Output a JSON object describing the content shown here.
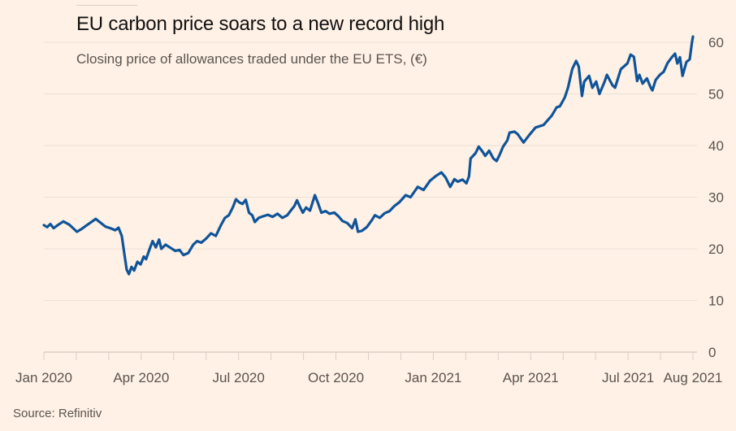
{
  "header": {
    "title": "EU carbon price soars to a new record high",
    "subtitle": "Closing price of allowances traded under the EU ETS, (€)"
  },
  "footer": {
    "source": "Source: Refinitiv"
  },
  "colors": {
    "background": "#fff1e5",
    "line": "#0f5499",
    "grid": "#ebe0d6",
    "text": "#5a5450",
    "title": "#111111"
  },
  "chart_data": {
    "type": "line",
    "title": "EU carbon price soars to a new record high",
    "subtitle": "Closing price of allowances traded under the EU ETS, (€)",
    "xlabel": "",
    "ylabel": "€",
    "x_unit": "months since Jan 2020",
    "xlim": [
      0,
      20
    ],
    "ylim": [
      0,
      60
    ],
    "y_ticks": [
      0,
      10,
      20,
      30,
      40,
      50,
      60
    ],
    "y_axis_position": "right",
    "grid": true,
    "x_ticks_months": [
      0,
      1,
      2,
      3,
      4,
      5,
      6,
      7,
      8,
      9,
      10,
      11,
      12,
      13,
      14,
      15,
      16,
      17,
      18,
      19,
      20
    ],
    "x_tick_labels": [
      {
        "month": 0,
        "label": "Jan 2020"
      },
      {
        "month": 3,
        "label": "Apr 2020"
      },
      {
        "month": 6,
        "label": "Jul 2020"
      },
      {
        "month": 9,
        "label": "Oct 2020"
      },
      {
        "month": 12,
        "label": "Jan 2021"
      },
      {
        "month": 15,
        "label": "Apr 2021"
      },
      {
        "month": 18,
        "label": "Jul 2021"
      },
      {
        "month": 20,
        "label": "Aug 2021"
      }
    ],
    "series": [
      {
        "name": "EU ETS allowance closing price",
        "points": [
          [
            0.0,
            24.6
          ],
          [
            0.1,
            24.2
          ],
          [
            0.2,
            24.8
          ],
          [
            0.3,
            24.0
          ],
          [
            0.45,
            24.7
          ],
          [
            0.6,
            25.3
          ],
          [
            0.78,
            24.7
          ],
          [
            1.02,
            23.3
          ],
          [
            1.15,
            23.8
          ],
          [
            1.35,
            24.7
          ],
          [
            1.6,
            25.8
          ],
          [
            1.72,
            25.2
          ],
          [
            1.9,
            24.3
          ],
          [
            2.05,
            24.0
          ],
          [
            2.2,
            23.6
          ],
          [
            2.3,
            24.1
          ],
          [
            2.4,
            22.5
          ],
          [
            2.48,
            19.0
          ],
          [
            2.55,
            16.0
          ],
          [
            2.62,
            15.1
          ],
          [
            2.7,
            16.5
          ],
          [
            2.78,
            15.8
          ],
          [
            2.88,
            17.5
          ],
          [
            2.98,
            17.0
          ],
          [
            3.08,
            18.5
          ],
          [
            3.15,
            18.0
          ],
          [
            3.25,
            19.8
          ],
          [
            3.35,
            21.5
          ],
          [
            3.45,
            20.3
          ],
          [
            3.55,
            21.8
          ],
          [
            3.62,
            20.0
          ],
          [
            3.75,
            20.8
          ],
          [
            3.9,
            20.2
          ],
          [
            4.05,
            19.6
          ],
          [
            4.18,
            19.8
          ],
          [
            4.3,
            18.8
          ],
          [
            4.45,
            19.2
          ],
          [
            4.6,
            20.8
          ],
          [
            4.72,
            21.5
          ],
          [
            4.85,
            21.2
          ],
          [
            5.0,
            22.0
          ],
          [
            5.15,
            23.0
          ],
          [
            5.3,
            22.5
          ],
          [
            5.45,
            24.5
          ],
          [
            5.58,
            26.0
          ],
          [
            5.7,
            26.5
          ],
          [
            5.82,
            28.0
          ],
          [
            5.92,
            29.6
          ],
          [
            6.02,
            29.0
          ],
          [
            6.12,
            28.7
          ],
          [
            6.22,
            29.5
          ],
          [
            6.32,
            27.0
          ],
          [
            6.42,
            26.5
          ],
          [
            6.5,
            25.2
          ],
          [
            6.62,
            26.0
          ],
          [
            6.75,
            26.3
          ],
          [
            6.9,
            26.6
          ],
          [
            7.05,
            26.2
          ],
          [
            7.2,
            26.8
          ],
          [
            7.35,
            26.0
          ],
          [
            7.5,
            26.5
          ],
          [
            7.62,
            27.5
          ],
          [
            7.72,
            28.3
          ],
          [
            7.8,
            29.4
          ],
          [
            7.9,
            28.0
          ],
          [
            7.98,
            27.0
          ],
          [
            8.08,
            28.0
          ],
          [
            8.2,
            27.4
          ],
          [
            8.35,
            30.4
          ],
          [
            8.45,
            28.8
          ],
          [
            8.55,
            27.0
          ],
          [
            8.68,
            27.3
          ],
          [
            8.8,
            26.8
          ],
          [
            8.95,
            27.0
          ],
          [
            9.08,
            26.3
          ],
          [
            9.2,
            25.4
          ],
          [
            9.35,
            25.0
          ],
          [
            9.5,
            24.0
          ],
          [
            9.6,
            25.7
          ],
          [
            9.68,
            23.3
          ],
          [
            9.8,
            23.5
          ],
          [
            9.95,
            24.2
          ],
          [
            10.1,
            25.5
          ],
          [
            10.2,
            26.5
          ],
          [
            10.35,
            26.0
          ],
          [
            10.5,
            26.9
          ],
          [
            10.65,
            27.3
          ],
          [
            10.8,
            28.3
          ],
          [
            10.95,
            29.0
          ],
          [
            11.15,
            30.4
          ],
          [
            11.3,
            30.0
          ],
          [
            11.52,
            32.0
          ],
          [
            11.7,
            31.4
          ],
          [
            11.9,
            33.2
          ],
          [
            12.1,
            34.2
          ],
          [
            12.25,
            34.8
          ],
          [
            12.38,
            33.8
          ],
          [
            12.52,
            32.0
          ],
          [
            12.65,
            33.5
          ],
          [
            12.75,
            33.0
          ],
          [
            12.9,
            33.4
          ],
          [
            13.02,
            32.7
          ],
          [
            13.1,
            34.0
          ],
          [
            13.15,
            37.5
          ],
          [
            13.3,
            38.5
          ],
          [
            13.4,
            39.8
          ],
          [
            13.52,
            38.8
          ],
          [
            13.6,
            38.0
          ],
          [
            13.72,
            39.0
          ],
          [
            13.85,
            37.5
          ],
          [
            13.95,
            37.0
          ],
          [
            14.05,
            38.3
          ],
          [
            14.15,
            39.8
          ],
          [
            14.28,
            41.0
          ],
          [
            14.35,
            42.5
          ],
          [
            14.5,
            42.7
          ],
          [
            14.6,
            42.2
          ],
          [
            14.78,
            40.6
          ],
          [
            14.95,
            42.0
          ],
          [
            15.15,
            43.5
          ],
          [
            15.4,
            44.0
          ],
          [
            15.65,
            45.8
          ],
          [
            15.8,
            47.4
          ],
          [
            15.9,
            47.6
          ],
          [
            16.05,
            49.3
          ],
          [
            16.15,
            51.2
          ],
          [
            16.28,
            54.8
          ],
          [
            16.4,
            56.4
          ],
          [
            16.48,
            55.3
          ],
          [
            16.58,
            49.6
          ],
          [
            16.65,
            52.4
          ],
          [
            16.8,
            53.5
          ],
          [
            16.9,
            51.2
          ],
          [
            17.02,
            52.4
          ],
          [
            17.12,
            50.0
          ],
          [
            17.28,
            52.4
          ],
          [
            17.35,
            53.7
          ],
          [
            17.52,
            51.7
          ],
          [
            17.6,
            51.2
          ],
          [
            17.78,
            54.8
          ],
          [
            17.98,
            55.9
          ],
          [
            18.08,
            57.6
          ],
          [
            18.18,
            57.2
          ],
          [
            18.28,
            52.5
          ],
          [
            18.35,
            53.7
          ],
          [
            18.45,
            52.0
          ],
          [
            18.58,
            53.0
          ],
          [
            18.7,
            51.2
          ],
          [
            18.75,
            50.7
          ],
          [
            18.85,
            52.7
          ],
          [
            18.98,
            53.7
          ],
          [
            19.1,
            54.3
          ],
          [
            19.22,
            56.0
          ],
          [
            19.35,
            57.1
          ],
          [
            19.45,
            57.8
          ],
          [
            19.52,
            55.9
          ],
          [
            19.6,
            57.1
          ],
          [
            19.68,
            53.5
          ],
          [
            19.8,
            56.2
          ],
          [
            19.9,
            56.7
          ],
          [
            19.97,
            60.0
          ],
          [
            20.0,
            61.1
          ]
        ]
      }
    ]
  }
}
